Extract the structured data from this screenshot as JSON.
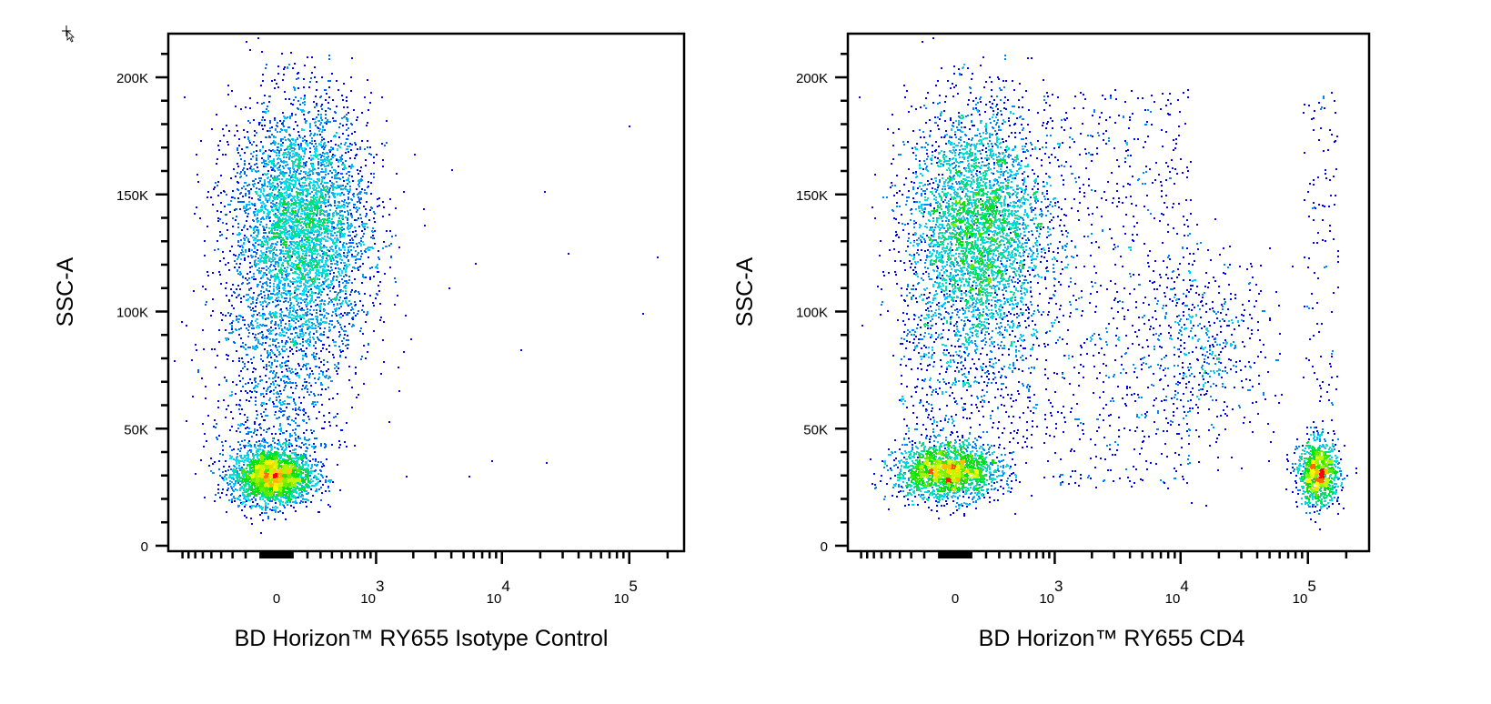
{
  "colors": {
    "density_low": "#0000ff",
    "density_mid1": "#00e0ff",
    "density_mid2": "#00e000",
    "density_mid3": "#ffff00",
    "density_high": "#ff0000",
    "axis": "#000000"
  },
  "cursor_icon": "move-cursor-icon",
  "chart_data": [
    {
      "type": "scatter",
      "subtype": "density-dot-plot",
      "xlabel": "BD Horizon™ RY655 Isotype Control",
      "ylabel": "SSC-A",
      "x_scale": "biexponential",
      "y_scale": "linear",
      "ylim": [
        0,
        219000
      ],
      "xlim": [
        -1170,
        260000
      ],
      "x_ticks": [
        {
          "value": 0,
          "label": "0"
        },
        {
          "value": 1000,
          "label": "10",
          "exp": "3"
        },
        {
          "value": 10000,
          "label": "10",
          "exp": "4"
        },
        {
          "value": 100000,
          "label": "10",
          "exp": "5"
        }
      ],
      "y_ticks": [
        {
          "value": 0,
          "label": "0"
        },
        {
          "value": 50000,
          "label": "50K"
        },
        {
          "value": 100000,
          "label": "100K"
        },
        {
          "value": 150000,
          "label": "150K"
        },
        {
          "value": 200000,
          "label": "200K"
        }
      ],
      "grid": false,
      "populations": [
        {
          "x_center": -30,
          "x_range": [
            -300,
            250
          ],
          "y_center": 30000,
          "y_sd": 6000,
          "n": 2600
        },
        {
          "x_center": 150,
          "x_range": [
            -300,
            900
          ],
          "y_center": 135000,
          "y_sd": 27000,
          "n": 4500
        },
        {
          "x_center": 0,
          "x_range": [
            -400,
            700
          ],
          "y_range": [
            42000,
            100000
          ],
          "n": 700
        },
        {
          "x_range": [
            -800,
            200000
          ],
          "y_range": [
            15000,
            200000
          ],
          "n": 30
        }
      ]
    },
    {
      "type": "scatter",
      "subtype": "density-dot-plot",
      "xlabel": "BD Horizon™ RY655 CD4",
      "ylabel": "SSC-A",
      "x_scale": "biexponential",
      "y_scale": "linear",
      "ylim": [
        0,
        219000
      ],
      "xlim": [
        -1170,
        260000
      ],
      "x_ticks": [
        {
          "value": 0,
          "label": "0"
        },
        {
          "value": 1000,
          "label": "10",
          "exp": "3"
        },
        {
          "value": 10000,
          "label": "10",
          "exp": "4"
        },
        {
          "value": 100000,
          "label": "10",
          "exp": "5"
        }
      ],
      "y_ticks": [
        {
          "value": 0,
          "label": "0"
        },
        {
          "value": 50000,
          "label": "50K"
        },
        {
          "value": 100000,
          "label": "100K"
        },
        {
          "value": 150000,
          "label": "150K"
        },
        {
          "value": 200000,
          "label": "200K"
        }
      ],
      "grid": false,
      "populations": [
        {
          "x_center": -50,
          "x_range": [
            -400,
            350
          ],
          "y_center": 32000,
          "y_sd": 6000,
          "n": 1900
        },
        {
          "x_center": 120000,
          "x_range": [
            80000,
            170000
          ],
          "y_center": 31000,
          "y_sd": 7000,
          "n": 1000
        },
        {
          "x_center": 130,
          "x_range": [
            -300,
            900
          ],
          "y_center": 135000,
          "y_sd": 27000,
          "n": 4000
        },
        {
          "x_center": 15000,
          "x_range": [
            3000,
            40000
          ],
          "y_center": 85000,
          "y_sd": 20000,
          "n": 550
        },
        {
          "x_range": [
            800,
            12000
          ],
          "y_range": [
            25000,
            195000
          ],
          "n": 700
        },
        {
          "x_range": [
            -400,
            700
          ],
          "y_range": [
            42000,
            100000
          ],
          "n": 450
        },
        {
          "x_range": [
            90000,
            170000
          ],
          "y_range": [
            45000,
            195000
          ],
          "n": 120
        }
      ]
    }
  ]
}
